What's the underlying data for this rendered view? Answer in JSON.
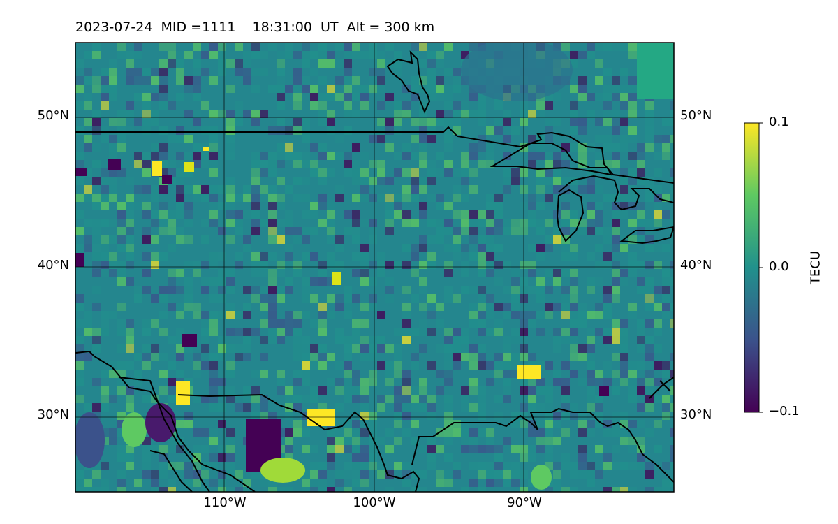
{
  "title": "2023-07-24  MID =1111    18:31:00  UT  Alt = 300 km",
  "lat_labels": [
    "50°N",
    "40°N",
    "30°N"
  ],
  "lon_labels": [
    "110°W",
    "100°W",
    "90°W"
  ],
  "colorbar": {
    "label": "TECU",
    "ticks": [
      "0.1",
      "0.0",
      "−0.1"
    ],
    "range": [
      -0.1,
      0.1
    ],
    "colormap": "viridis",
    "colors": [
      "#440154",
      "#3b528b",
      "#21918c",
      "#5ec962",
      "#fde725"
    ]
  },
  "map": {
    "extent_lon": [
      -120,
      -80
    ],
    "extent_lat": [
      25,
      55
    ],
    "gridlines": true,
    "coastline_color": "#000000"
  }
}
